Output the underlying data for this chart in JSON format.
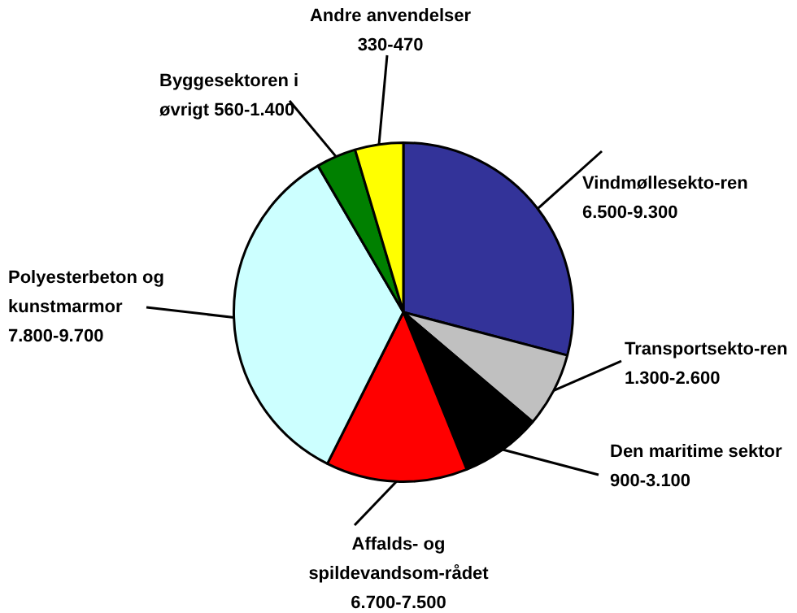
{
  "chart_data": {
    "type": "pie",
    "categories": [
      "Vindmøllesekto-ren",
      "Transportsekto-ren",
      "Den maritime sektor",
      "Affalds- og\nspildevandsom-rådet",
      "Polyesterbeton og\nkunstmarmor",
      "Byggesektoren i\nøvrigt",
      "Andre anvendelser"
    ],
    "values": [
      29.1,
      7.1,
      7.7,
      13.5,
      34.2,
      3.8,
      4.6
    ],
    "colors": [
      "#333399",
      "#c0c0c0",
      "#000000",
      "#ff0000",
      "#ccffff",
      "#008000",
      "#ffff00"
    ],
    "value_labels": [
      "6.500-9.300",
      "1.300-2.600",
      "900-3.100",
      "6.700-7.500",
      "7.800-9.700",
      "560-1.400",
      "330-470"
    ]
  }
}
